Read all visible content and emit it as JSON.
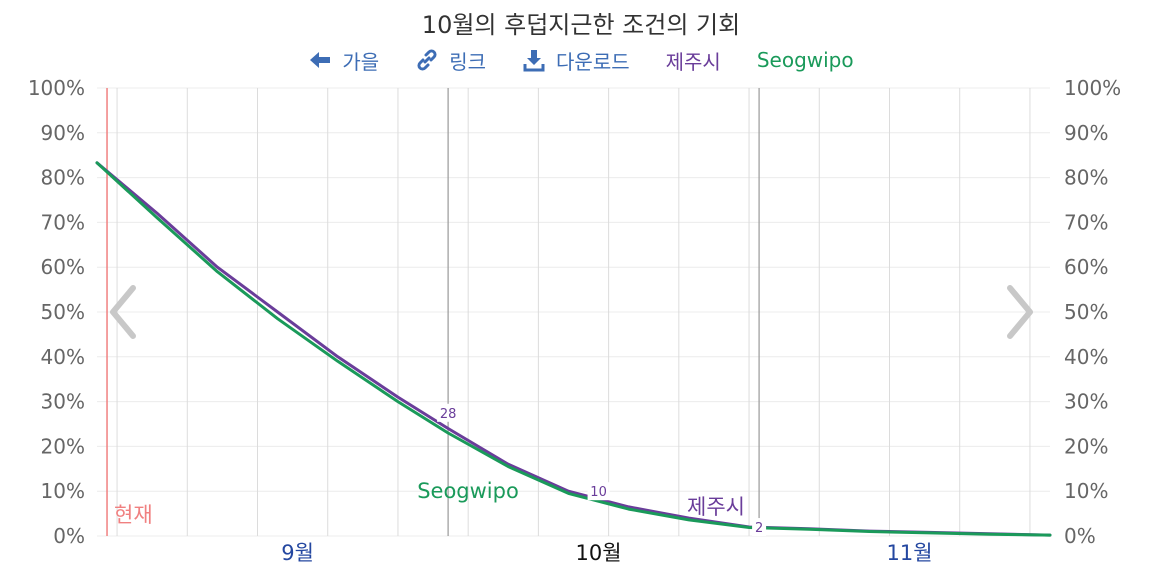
{
  "title": "10월의 후덥지근한 조건의 기회",
  "toolbar": {
    "autumn_label": "가을",
    "link_label": "링크",
    "download_label": "다운로드",
    "link_color": "#3d6db5"
  },
  "legend": [
    {
      "label": "제주시",
      "color": "#6a3d9a"
    },
    {
      "label": "Seogwipo",
      "color": "#1a9a5a"
    }
  ],
  "icons": {
    "autumn": "arrow-left-icon",
    "link": "link-icon",
    "download": "download-icon",
    "prev": "chevron-left-icon",
    "next": "chevron-right-icon"
  },
  "chart_data": {
    "type": "line",
    "title": "10월의 후덥지근한 조건의 기회",
    "y_ticks": [
      "0%",
      "10%",
      "20%",
      "30%",
      "40%",
      "50%",
      "60%",
      "70%",
      "80%",
      "90%",
      "100%"
    ],
    "ylim": [
      0,
      100
    ],
    "x_range": [
      "08-27",
      "11-30"
    ],
    "x_month_labels": [
      {
        "label": "9월",
        "date": "09-16"
      },
      {
        "label": "10월",
        "date": "10-16"
      },
      {
        "label": "11월",
        "date": "11-16"
      }
    ],
    "current_label": "현재",
    "current_date": "08-28",
    "grid": true,
    "series": [
      {
        "name": "제주시",
        "color": "#6a3d9a",
        "x": [
          "08-27",
          "09-02",
          "09-08",
          "09-14",
          "09-20",
          "09-26",
          "10-01",
          "10-07",
          "10-13",
          "10-19",
          "10-25",
          "10-31",
          "11-06",
          "11-12",
          "11-18",
          "11-24",
          "11-30"
        ],
        "values": [
          83.3,
          72,
          60,
          50,
          40,
          31,
          24,
          16,
          10,
          6.5,
          4,
          2,
          1.6,
          1.1,
          0.8,
          0.5,
          0.2
        ]
      },
      {
        "name": "Seogwipo",
        "color": "#1a9a5a",
        "x": [
          "08-27",
          "09-02",
          "09-08",
          "09-14",
          "09-20",
          "09-26",
          "10-01",
          "10-07",
          "10-13",
          "10-19",
          "10-25",
          "10-31",
          "11-06",
          "11-12",
          "11-18",
          "11-24",
          "11-30"
        ],
        "values": [
          83.3,
          71,
          59,
          48.5,
          39,
          30,
          23,
          15.5,
          9.5,
          6,
          3.6,
          1.9,
          1.5,
          1.0,
          0.7,
          0.4,
          0.2
        ]
      }
    ],
    "markers": [
      {
        "label": "28",
        "x": "10-01",
        "y": 27.5
      },
      {
        "label": "10",
        "x": "10-16",
        "y": 10
      },
      {
        "label": "2",
        "x": "11-01",
        "y": 2
      }
    ],
    "annotations": [
      {
        "text": "Seogwipo",
        "series": "Seogwipo"
      },
      {
        "text": "제주시",
        "series": "제주시"
      }
    ]
  }
}
